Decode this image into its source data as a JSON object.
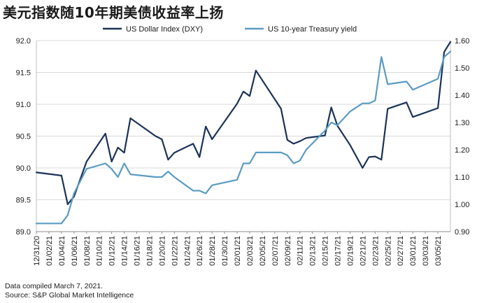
{
  "title": "美元指数随10年期美债收益率上扬",
  "footer": {
    "line1": "Data compiled March 7, 2021.",
    "line2": "Source: S&P Global Market Intelligence"
  },
  "chart_data": {
    "type": "line",
    "title": "美元指数随10年期美债收益率上扬",
    "xlabel": "",
    "ylabel_left": "",
    "ylabel_right": "",
    "ylim_left": [
      89.0,
      92.0
    ],
    "ylim_right": [
      0.9,
      1.6
    ],
    "yticks_left": [
      "89.0",
      "89.5",
      "90.0",
      "90.5",
      "91.0",
      "91.5",
      "92.0"
    ],
    "yticks_right": [
      "0.90",
      "1.00",
      "1.10",
      "1.20",
      "1.30",
      "1.40",
      "1.50",
      "1.60"
    ],
    "xticks": [
      "12/31/20",
      "01/02/21",
      "01/04/21",
      "01/06/21",
      "01/08/21",
      "01/10/21",
      "01/12/21",
      "01/14/21",
      "01/16/21",
      "01/18/21",
      "01/20/21",
      "01/22/21",
      "01/24/21",
      "01/26/21",
      "01/28/21",
      "01/30/21",
      "02/01/21",
      "02/03/21",
      "02/05/21",
      "02/07/21",
      "02/09/21",
      "02/11/21",
      "02/13/21",
      "02/15/21",
      "02/17/21",
      "02/19/21",
      "02/21/21",
      "02/23/21",
      "02/25/21",
      "02/27/21",
      "03/01/21",
      "03/03/21",
      "03/05/21"
    ],
    "grid": true,
    "legend_position": "top",
    "colors": {
      "dxy": "#1b3358",
      "yield": "#5b9bc4"
    },
    "series": [
      {
        "name": "US Dollar Index (DXY)",
        "axis": "left",
        "x": [
          0,
          4,
          5,
          6,
          8,
          11,
          12,
          13,
          14,
          15,
          19,
          20,
          21,
          22,
          25,
          26,
          27,
          28,
          32,
          33,
          34,
          35,
          39,
          40,
          41,
          42,
          43,
          46,
          47,
          48,
          50,
          52,
          53,
          54,
          55,
          56,
          59,
          60,
          64,
          65,
          66
        ],
        "values": [
          89.93,
          89.88,
          89.43,
          89.55,
          90.1,
          90.54,
          90.1,
          90.32,
          90.24,
          90.78,
          90.5,
          90.45,
          90.13,
          90.24,
          90.38,
          90.17,
          90.65,
          90.45,
          91.01,
          91.2,
          91.13,
          91.53,
          90.93,
          90.44,
          90.38,
          90.42,
          90.47,
          90.51,
          90.95,
          90.66,
          90.36,
          90.0,
          90.17,
          90.18,
          90.13,
          90.93,
          91.03,
          90.8,
          90.94,
          91.82,
          91.98
        ]
      },
      {
        "name": "US 10-year Treasury yield",
        "axis": "right",
        "x": [
          0,
          4,
          5,
          6,
          8,
          11,
          12,
          13,
          14,
          15,
          19,
          20,
          21,
          22,
          25,
          26,
          27,
          28,
          32,
          33,
          34,
          35,
          39,
          40,
          41,
          42,
          43,
          46,
          47,
          48,
          50,
          52,
          53,
          54,
          55,
          56,
          59,
          60,
          64,
          65,
          66
        ],
        "values": [
          0.93,
          0.93,
          0.96,
          1.04,
          1.13,
          1.15,
          1.13,
          1.1,
          1.15,
          1.11,
          1.1,
          1.1,
          1.12,
          1.1,
          1.05,
          1.05,
          1.04,
          1.07,
          1.09,
          1.15,
          1.15,
          1.19,
          1.19,
          1.18,
          1.15,
          1.16,
          1.2,
          1.27,
          1.3,
          1.29,
          1.34,
          1.37,
          1.37,
          1.38,
          1.54,
          1.44,
          1.45,
          1.42,
          1.46,
          1.54,
          1.56
        ]
      }
    ]
  }
}
